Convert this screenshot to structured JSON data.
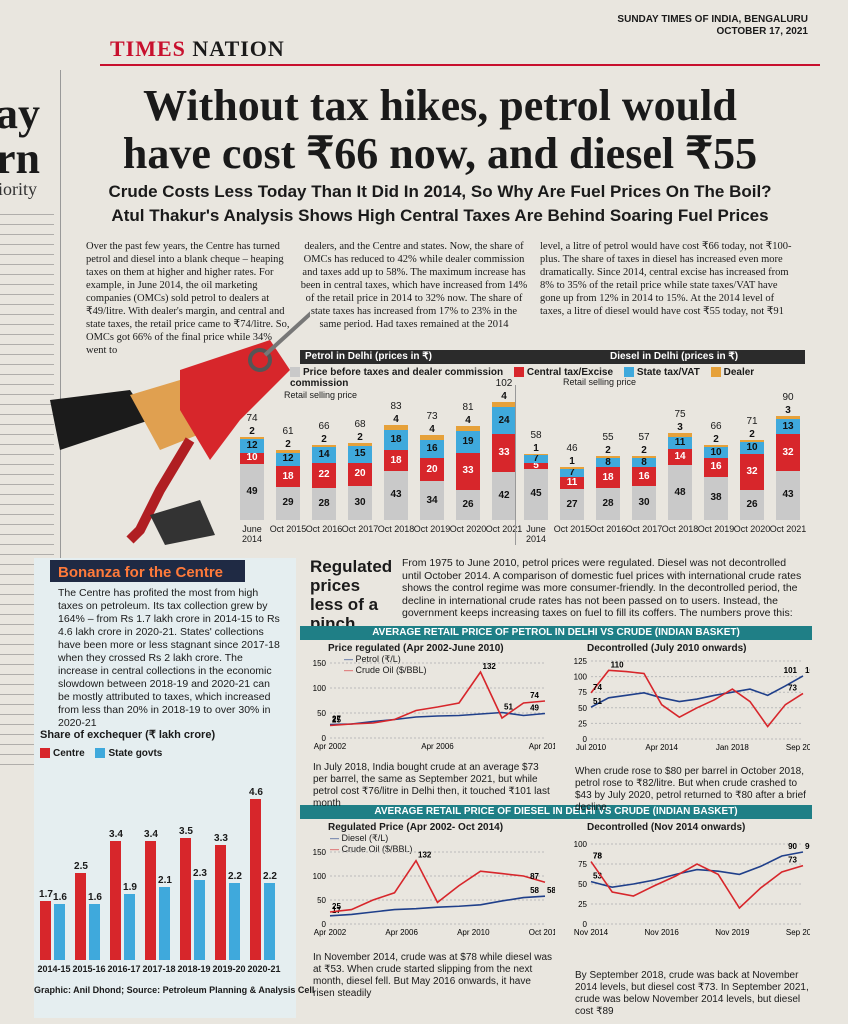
{
  "paper": {
    "name": "SUNDAY TIMES OF INDIA, BENGALURU",
    "date": "OCTOBER 17, 2021"
  },
  "masthead": {
    "brand": "TIMES",
    "section": "NATION"
  },
  "left_strip": {
    "big1": "ay",
    "big2": "rn",
    "sub": "iority"
  },
  "headline": {
    "line1": "Without tax hikes, petrol would",
    "line2": "have cost ₹66 now, and diesel ₹55"
  },
  "deck": {
    "line1": "Crude Costs Less Today Than It Did In 2014, So Why Are Fuel Prices On The Boil?",
    "line2": "Atul Thakur's Analysis Shows High Central Taxes Are Behind Soaring Fuel Prices"
  },
  "story": {
    "col1": "Over the past few years, the Centre has turned petrol and diesel into a blank cheque – heaping taxes on them at higher and higher rates. For example, in June 2014, the oil marketing companies (OMCs) sold petrol to dealers at ₹49/litre. With dealer's margin, and central and state taxes, the retail price came to ₹74/litre. So, OMCs got 66% of the final price while 34% went to",
    "col2": "dealers, and the Centre and states. Now, the share of OMCs has reduced to 42% while dealer commission and taxes add up to 58%. The maximum increase has been in central taxes, which have increased from 14% of the retail price in 2014 to 32% now. The share of state taxes has increased from 17% to 23% in the same period. Had taxes remained at the 2014",
    "col3": "level, a litre of petrol would have cost ₹66 today, not ₹100-plus. The share of taxes in diesel has increased even more dramatically. Since 2014, central excise has increased from 8% to 35% of the retail price while state taxes/VAT have gone up from 12% in 2014 to 15%. At the 2014 level of taxes, a litre of diesel would have cost ₹55 today, not ₹91"
  },
  "colors": {
    "base": "#c9c9c9",
    "central": "#d7262b",
    "state": "#3fa9dc",
    "dealer": "#e6a13a",
    "teal": "#1f7f86",
    "darkred": "#c8102e"
  },
  "fuel_chart": {
    "petrol_title": "Petrol in Delhi (prices in ₹)",
    "diesel_title": "Diesel in Delhi (prices in ₹)",
    "legend": [
      "Price before taxes and dealer commission",
      "Central tax/Excise",
      "State tax/VAT",
      "Dealer commission"
    ],
    "retail_label": "Retail selling price",
    "petrol_retail_label": "Retail selling price",
    "ticks": [
      "June 2014",
      "Oct 2015",
      "Oct 2016",
      "Oct 2017",
      "Oct 2018",
      "Oct 2019",
      "Oct 2020",
      "Oct 2021"
    ]
  },
  "chart_data": [
    {
      "type": "bar",
      "title": "Petrol in Delhi (prices in ₹)",
      "categories": [
        "June 2014",
        "Oct 2015",
        "Oct 2016",
        "Oct 2017",
        "Oct 2018",
        "Oct 2019",
        "Oct 2020",
        "Oct 2021"
      ],
      "series": [
        {
          "name": "Price before taxes and dealer commission",
          "values": [
            49,
            29,
            28,
            30,
            43,
            34,
            26,
            42
          ]
        },
        {
          "name": "Central tax/Excise",
          "values": [
            10,
            18,
            22,
            20,
            18,
            20,
            33,
            33
          ]
        },
        {
          "name": "State tax/VAT",
          "values": [
            12,
            12,
            14,
            15,
            18,
            16,
            19,
            24
          ]
        },
        {
          "name": "Dealer commission",
          "values": [
            2,
            2,
            2,
            2,
            4,
            4,
            4,
            4
          ]
        }
      ],
      "totals": [
        74,
        61,
        66,
        68,
        83,
        73,
        81,
        102
      ]
    },
    {
      "type": "bar",
      "title": "Diesel in Delhi (prices in ₹)",
      "categories": [
        "June 2014",
        "Oct 2015",
        "Oct 2016",
        "Oct 2017",
        "Oct 2018",
        "Oct 2019",
        "Oct 2020",
        "Oct 2021"
      ],
      "series": [
        {
          "name": "Price before taxes and dealer commission",
          "values": [
            45,
            27,
            28,
            30,
            48,
            38,
            26,
            43
          ]
        },
        {
          "name": "Central tax/Excise",
          "values": [
            5,
            11,
            18,
            16,
            14,
            16,
            32,
            32
          ]
        },
        {
          "name": "State tax/VAT",
          "values": [
            7,
            7,
            8,
            8,
            11,
            10,
            10,
            13
          ]
        },
        {
          "name": "Dealer commission",
          "values": [
            1,
            1,
            2,
            2,
            3,
            2,
            2,
            3
          ]
        }
      ],
      "totals": [
        58,
        46,
        55,
        57,
        75,
        66,
        71,
        90
      ]
    },
    {
      "type": "bar",
      "title": "Share of exchequer (₹ lakh crore)",
      "categories": [
        "2014-15",
        "2015-16",
        "2016-17",
        "2017-18",
        "2018-19",
        "2019-20",
        "2020-21"
      ],
      "series": [
        {
          "name": "Centre",
          "values": [
            1.7,
            2.5,
            3.4,
            3.4,
            3.5,
            3.3,
            4.6
          ]
        },
        {
          "name": "State govts",
          "values": [
            1.6,
            1.6,
            1.9,
            2.1,
            2.3,
            2.2,
            2.2
          ]
        }
      ],
      "ylim": [
        0,
        5
      ]
    },
    {
      "type": "line",
      "title": "Price regulated (Apr 2002-June 2010)",
      "x_ticks": [
        "Apr 2002",
        "Apr 2006",
        "Apr 2010"
      ],
      "ylim": [
        0,
        150
      ],
      "y_ticks": [
        0,
        50,
        100,
        150
      ],
      "series": [
        {
          "name": "Petrol (₹/L)",
          "values": [
            27,
            28,
            33,
            37,
            42,
            44,
            45,
            48,
            51,
            45,
            49
          ]
        },
        {
          "name": "Crude Oil ($/BBL)",
          "values": [
            25,
            28,
            30,
            37,
            55,
            62,
            70,
            132,
            40,
            70,
            74
          ]
        }
      ],
      "annotations": [
        "132",
        "74",
        "51",
        "49",
        "27",
        "25"
      ]
    },
    {
      "type": "line",
      "title": "Decontrolled (July 2010 onwards)",
      "x_ticks": [
        "Jul 2010",
        "Apr 2014",
        "Jan 2018",
        "Sep 2021"
      ],
      "ylim": [
        0,
        125
      ],
      "y_ticks": [
        0,
        25,
        50,
        75,
        100,
        125
      ],
      "series": [
        {
          "name": "Petrol (₹/L)",
          "values": [
            51,
            66,
            70,
            74,
            66,
            60,
            64,
            70,
            75,
            80,
            70,
            85,
            101
          ]
        },
        {
          "name": "Crude Oil ($/BBL)",
          "values": [
            74,
            110,
            108,
            105,
            55,
            35,
            50,
            63,
            80,
            60,
            20,
            55,
            73
          ]
        }
      ],
      "annotations": [
        "74",
        "51",
        "70",
        "101",
        "20",
        "73"
      ]
    },
    {
      "type": "line",
      "title": "Regulated Price (Apr 2002- Oct 2014)",
      "x_ticks": [
        "Apr 2002",
        "Apr 2006",
        "Apr 2010",
        "Oct 2014"
      ],
      "ylim": [
        0,
        150
      ],
      "y_ticks": [
        0,
        50,
        100,
        150
      ],
      "series": [
        {
          "name": "Diesel (₹/L)",
          "values": [
            17,
            20,
            25,
            30,
            32,
            35,
            37,
            40,
            48,
            55,
            58
          ]
        },
        {
          "name": "Crude Oil ($/BBL)",
          "values": [
            25,
            30,
            50,
            65,
            132,
            45,
            80,
            110,
            105,
            100,
            87
          ]
        }
      ],
      "annotations": [
        "132",
        "87",
        "58",
        "35",
        "25",
        "17"
      ]
    },
    {
      "type": "line",
      "title": "Decontrolled (Nov 2014 onwards)",
      "x_ticks": [
        "Nov 2014",
        "Nov 2016",
        "Nov 2019",
        "Sep 2021"
      ],
      "ylim": [
        0,
        100
      ],
      "y_ticks": [
        0,
        25,
        50,
        75,
        100
      ],
      "series": [
        {
          "name": "Diesel (₹/L)",
          "values": [
            53,
            46,
            50,
            55,
            62,
            68,
            66,
            62,
            72,
            85,
            90
          ]
        },
        {
          "name": "Crude Oil ($/BBL)",
          "values": [
            78,
            40,
            35,
            48,
            60,
            75,
            62,
            20,
            45,
            65,
            73
          ]
        }
      ],
      "annotations": [
        "78",
        "53",
        "73",
        "73"
      ]
    }
  ],
  "bonanza": {
    "title": "Bonanza for the Centre",
    "text": "The Centre has profited the most from high taxes on petroleum. Its tax collection grew by 164% – from Rs 1.7 lakh crore in 2014-15 to Rs 4.6 lakh crore in 2020-21. States' collections have been more or less stagnant since 2017-18 when they crossed Rs 2 lakh crore. The increase in central collections in the economic slowdown between 2018-19 and 2020-21 can be mostly attributed to taxes, which increased from less than 20% in 2018-19 to over 30% in 2020-21",
    "chart_title": "Share of exchequer (₹ lakh crore)",
    "legend_centre": "Centre",
    "legend_states": "State govts",
    "credit": "Graphic: Anil Dhond; Source: Petroleum Planning & Analysis Cell"
  },
  "regulated": {
    "title": "Regulated prices less of a pinch",
    "text": "From 1975 to June 2010, petrol prices were regulated. Diesel was not decontrolled until October 2014. A comparison of domestic fuel prices with international crude rates shows the control regime was more consumer-friendly. In the decontrolled period, the decline in international crude rates has not been passed on to users. Instead, the government keeps increasing taxes on fuel to fill its coffers. The numbers prove this:",
    "petrol_band": "AVERAGE RETAIL PRICE OF PETROL IN DELHI VS CRUDE (INDIAN BASKET)",
    "diesel_band": "AVERAGE RETAIL PRICE OF DIESEL IN DELHI VS CRUDE (INDIAN BASKET)",
    "petrol_legend": "Petrol (₹/L)",
    "diesel_legend": "Diesel (₹/L)",
    "crude_legend": "Crude Oil ($/BBL)",
    "cap1": "In July 2018, India bought crude at an average $73 per barrel, the same as September 2021, but while petrol cost ₹76/litre in Delhi then, it touched ₹101 last month",
    "cap2": "When crude rose to $80 per barrel in October 2018, petrol rose to ₹82/litre. But when crude crashed to $43 by July 2020, petrol returned to ₹80 after a brief decline",
    "cap3": "In November 2014, crude was at $78 while diesel was at ₹53. When crude started slipping from the next month, diesel fell. But May 2016 onwards, it have risen steadily",
    "cap4": "By September 2018, crude was back at November 2014 levels, but diesel cost ₹73. In September 2021, crude was below November 2014 levels, but diesel cost ₹89"
  }
}
